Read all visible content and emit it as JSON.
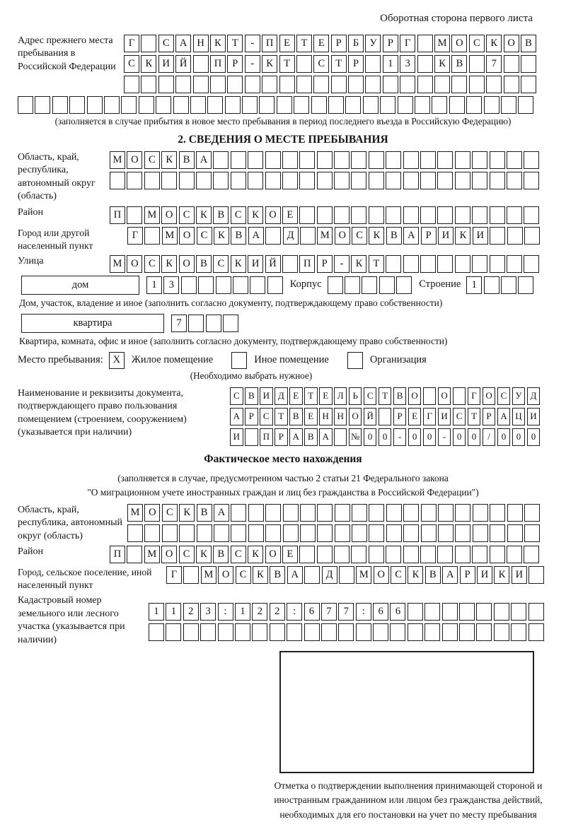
{
  "page": {
    "header_note": "Оборотная сторона первого листа"
  },
  "prev_address": {
    "label": "Адрес прежнего места пребывания в Российской Федерации",
    "rows": [
      {
        "count": 24,
        "chars": "Г САНКТ-ПЕТЕРБУРГ МОСКОВ"
      },
      {
        "count": 24,
        "chars": "СКИЙ ПР-КТ СТР 13 КВ 7"
      },
      {
        "count": 24,
        "chars": ""
      },
      {
        "count": 30,
        "chars": ""
      }
    ],
    "caption": "(заполняется в случае прибытия в новое место пребывания в период последнего въезда в Российскую Федерацию)"
  },
  "section2": {
    "title": "2. СВЕДЕНИЯ О МЕСТЕ ПРЕБЫВАНИЯ",
    "oblast": {
      "label": "Область, край, республика, автономный округ (область)",
      "rows": [
        {
          "count": 25,
          "chars": "МОСКВА"
        },
        {
          "count": 25,
          "chars": ""
        }
      ]
    },
    "raion": {
      "label": "Район",
      "row": {
        "count": 25,
        "chars": "П МОСКВСКОЕ"
      }
    },
    "gorod": {
      "label": "Город или другой населенный пункт",
      "row": {
        "count": 24,
        "chars": "Г МОСКВА Д МОСКВАРИКИ"
      }
    },
    "ulitsa": {
      "label": "Улица",
      "row": {
        "count": 25,
        "chars": "МОСКОВСКИЙ ПР-КТ"
      }
    },
    "dom": {
      "box_label": "дом",
      "row": {
        "count": 8,
        "chars": "13"
      },
      "korpus_label": "Корпус",
      "korpus_row": {
        "count": 5,
        "chars": ""
      },
      "stroenie_label": "Строение",
      "stroenie_row": {
        "count": 4,
        "chars": "1"
      },
      "caption": "Дом, участок, владение и иное (заполнить согласно документу, подтверждающему право собственности)"
    },
    "kvartira": {
      "box_label": "квартира",
      "row": {
        "count": 4,
        "chars": "7"
      },
      "caption": "Квартира, комната, офис и иное (заполнить согласно документу, подтверждающему право собственности)"
    },
    "location_type": {
      "label": "Место пребывания:",
      "options": [
        {
          "label": "Жилое помещение",
          "mark": "X"
        },
        {
          "label": "Иное помещение",
          "mark": ""
        },
        {
          "label": "Организация",
          "mark": ""
        }
      ],
      "caption": "(Необходимо выбрать нужное)"
    },
    "document": {
      "label": "Наименование и реквизиты документа, подтверждающего право пользования помещением (строением, сооружением) (указывается при наличии)",
      "rows": [
        {
          "count": 21,
          "chars": "СВИДЕТЕЛЬСТВО О ГОСУД"
        },
        {
          "count": 21,
          "chars": "АРСТВЕННОЙ РЕГИСТРАЦИ"
        },
        {
          "count": 21,
          "chars": "И ПРАВА №00-00-00/000"
        }
      ]
    }
  },
  "factual": {
    "title": "Фактическое место нахождения",
    "caption_line1": "(заполняется в случае, предусмотренном частью 2 статьи 21 Федерального закона",
    "caption_line2": "\"О миграционном учете иностранных граждан и лиц без гражданства в Российской Федерации\")",
    "oblast": {
      "label": "Область, край, республика, автономный округ (область)",
      "rows": [
        {
          "count": 24,
          "chars": "МОСКВА"
        },
        {
          "count": 24,
          "chars": ""
        }
      ]
    },
    "raion": {
      "label": "Район",
      "row": {
        "count": 25,
        "chars": "П МОСКВСКОЕ"
      }
    },
    "gorod": {
      "label": "Город, сельское поселение, иной населенный пункт",
      "row": {
        "count": 22,
        "chars": "Г МОСКВА Д МОСКВАРИКИ"
      }
    },
    "kadastr": {
      "label": "Кадастровый номер земельного или лесного участка (указывается при наличии)",
      "rows": [
        {
          "count": 23,
          "chars": "1123:122:677:66"
        },
        {
          "count": 23,
          "chars": ""
        }
      ]
    },
    "stamp_note": "Отметка о подтверждении выполнения принимающей стороной и иностранным гражданином или лицом без гражданства действий, необходимых для его постановки на учет по месту пребывания"
  }
}
